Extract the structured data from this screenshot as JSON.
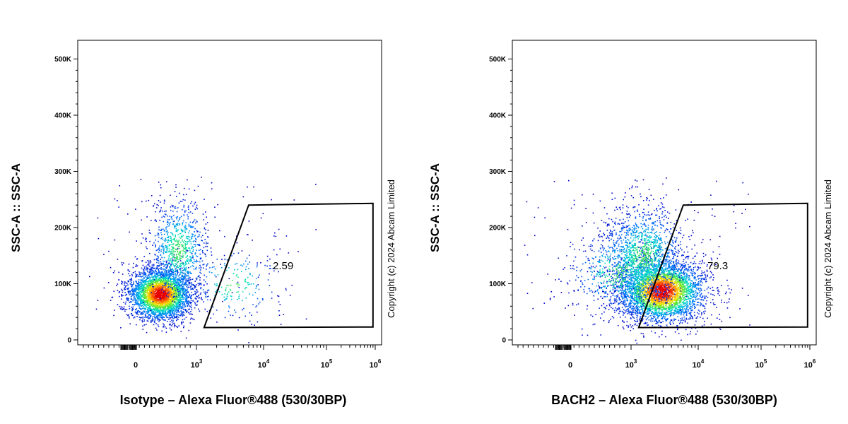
{
  "chart_data": [
    {
      "type": "scatter",
      "subtype": "flow-cytometry-density",
      "xlabel": "Isotype – Alexa Fluor®488 (530/30BP)",
      "ylabel": "SSC-A :: SSC-A",
      "x_scale": "biexponential",
      "x_ticks": [
        {
          "value": 0,
          "base": "0",
          "exp": ""
        },
        {
          "value": 1000,
          "base": "10",
          "exp": "3"
        },
        {
          "value": 10000,
          "base": "10",
          "exp": "4"
        },
        {
          "value": 100000,
          "base": "10",
          "exp": "5"
        },
        {
          "value": 1000000,
          "base": "10",
          "exp": "6"
        }
      ],
      "y_ticks": [
        {
          "value": 0,
          "label": "0"
        },
        {
          "value": 100000,
          "label": "100K"
        },
        {
          "value": 200000,
          "label": "200K"
        },
        {
          "value": 300000,
          "label": "300K"
        },
        {
          "value": 400000,
          "label": "400K"
        },
        {
          "value": 500000,
          "label": "500K"
        }
      ],
      "ylim": [
        0,
        540000
      ],
      "gate": {
        "vertices": [
          [
            1300,
            22000
          ],
          [
            6000,
            240000
          ],
          [
            900000,
            243000
          ],
          [
            900000,
            23000
          ]
        ],
        "percent_label": "2.59"
      },
      "populations": [
        {
          "x_center": 400,
          "y_center": 82000,
          "count": 3500
        },
        {
          "x_center": 700,
          "y_center": 160000,
          "count": 900
        },
        {
          "x_center": 3500,
          "y_center": 100000,
          "count": 200
        }
      ],
      "copyright": "Copyright (c) 2024 Abcam Limited"
    },
    {
      "type": "scatter",
      "subtype": "flow-cytometry-density",
      "xlabel": "BACH2 – Alexa Fluor®488 (530/30BP)",
      "ylabel": "SSC-A :: SSC-A",
      "x_scale": "biexponential",
      "x_ticks": [
        {
          "value": 0,
          "base": "0",
          "exp": ""
        },
        {
          "value": 1000,
          "base": "10",
          "exp": "3"
        },
        {
          "value": 10000,
          "base": "10",
          "exp": "4"
        },
        {
          "value": 100000,
          "base": "10",
          "exp": "5"
        },
        {
          "value": 1000000,
          "base": "10",
          "exp": "6"
        }
      ],
      "y_ticks": [
        {
          "value": 0,
          "label": "0"
        },
        {
          "value": 100000,
          "label": "100K"
        },
        {
          "value": 200000,
          "label": "200K"
        },
        {
          "value": 300000,
          "label": "300K"
        },
        {
          "value": 400000,
          "label": "400K"
        },
        {
          "value": 500000,
          "label": "500K"
        }
      ],
      "ylim": [
        0,
        540000
      ],
      "gate": {
        "vertices": [
          [
            1300,
            22000
          ],
          [
            6000,
            240000
          ],
          [
            900000,
            243000
          ],
          [
            900000,
            23000
          ]
        ],
        "percent_label": "79.3"
      },
      "populations": [
        {
          "x_center": 2800,
          "y_center": 88000,
          "count": 3600
        },
        {
          "x_center": 1500,
          "y_center": 150000,
          "count": 1400
        },
        {
          "x_center": 800,
          "y_center": 120000,
          "count": 500
        }
      ],
      "copyright": "Copyright (c) 2024 Abcam Limited"
    }
  ]
}
